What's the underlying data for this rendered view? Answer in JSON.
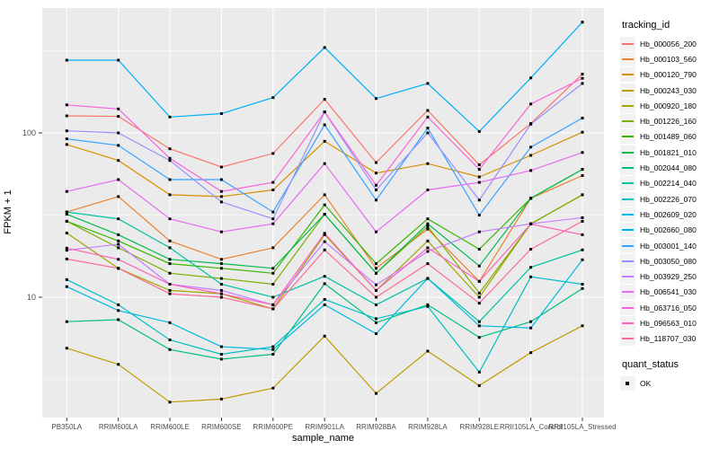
{
  "chart_data": {
    "type": "line",
    "title": "",
    "xlabel": "sample_name",
    "ylabel": "FPKM + 1",
    "y_scale": "log10",
    "y_ticks": [
      10,
      100
    ],
    "y_minor_ticks": [
      3.162,
      31.623,
      316.228
    ],
    "ylim": [
      1.85,
      575
    ],
    "grid": "on",
    "legend_position": "right",
    "legend_title": "tracking_id",
    "quant_legend_title": "quant_status",
    "quant_legend_value": "OK",
    "point_shape": "black-square",
    "panel_background": "#EBEBEB",
    "gridline_color": "#FFFFFF",
    "axis_text_color": "#4D4D4D",
    "categories": [
      "PB350LA",
      "RRIM600LA",
      "RRIM600LE",
      "RRIM600SE",
      "RRIM600PE",
      "RRIM901LA",
      "RRIM928BA",
      "RRIM928LA",
      "RRIM928LE",
      "RRII105LA_Control",
      "RRII105LA_Stressed"
    ],
    "series": [
      {
        "name": "Hb_000056_200",
        "color": "#F8766D",
        "values": [
          127,
          126,
          80,
          62,
          75,
          160,
          66,
          137,
          64,
          114,
          228
        ]
      },
      {
        "name": "Hb_000103_560",
        "color": "#EA8331",
        "values": [
          33,
          41,
          22,
          17,
          20,
          42,
          15,
          26,
          12.5,
          40,
          55
        ]
      },
      {
        "name": "Hb_000120_790",
        "color": "#D89000",
        "values": [
          85,
          68,
          42,
          41,
          45,
          89,
          57,
          65,
          54,
          73,
          101
        ]
      },
      {
        "name": "Hb_000243_030",
        "color": "#C09B00",
        "values": [
          4.9,
          3.9,
          2.3,
          2.4,
          2.8,
          5.8,
          2.6,
          4.7,
          2.9,
          4.6,
          6.7
        ]
      },
      {
        "name": "Hb_000920_180",
        "color": "#A3A500",
        "values": [
          24.6,
          15,
          11,
          10.5,
          8.5,
          24,
          11,
          22,
          10,
          28,
          42
        ]
      },
      {
        "name": "Hb_001226_160",
        "color": "#7CAE00",
        "values": [
          29,
          20,
          14,
          13,
          12,
          32,
          14,
          27,
          10.6,
          27.9,
          42
        ]
      },
      {
        "name": "Hb_001489_060",
        "color": "#39B600",
        "values": [
          29,
          22,
          16,
          15,
          14,
          36.5,
          16,
          30,
          19.6,
          40,
          60
        ]
      },
      {
        "name": "Hb_001821_010",
        "color": "#00BB4E",
        "values": [
          32,
          24,
          17,
          16,
          15,
          32,
          14,
          28,
          15.5,
          40,
          60
        ]
      },
      {
        "name": "Hb_002044_080",
        "color": "#00BF7D",
        "values": [
          7.1,
          7.3,
          4.8,
          4.2,
          4.5,
          12.1,
          7,
          9,
          5.7,
          7.1,
          11.3
        ]
      },
      {
        "name": "Hb_002214_040",
        "color": "#00C1A3",
        "values": [
          33,
          30,
          20,
          12,
          10,
          13.4,
          9,
          13,
          7.1,
          15.2,
          19.4
        ]
      },
      {
        "name": "Hb_002226_070",
        "color": "#00BFC4",
        "values": [
          12.8,
          9,
          5.5,
          4.5,
          5,
          9.7,
          7.4,
          8.8,
          3.5,
          13.3,
          12
        ]
      },
      {
        "name": "Hb_002609_020",
        "color": "#00BAE0",
        "values": [
          11.6,
          8.3,
          7,
          5,
          4.8,
          9,
          6,
          13,
          6.7,
          6.5,
          16.9
        ]
      },
      {
        "name": "Hb_002660_080",
        "color": "#00B0F6",
        "values": [
          277,
          277,
          125,
          131,
          164,
          331,
          162,
          200,
          102,
          216,
          472
        ]
      },
      {
        "name": "Hb_003001_140",
        "color": "#35A2FF",
        "values": [
          92,
          84,
          52,
          52,
          33,
          112,
          39,
          107,
          31.6,
          82,
          123
        ]
      },
      {
        "name": "Hb_003050_080",
        "color": "#9590FF",
        "values": [
          103,
          100,
          68,
          38,
          30,
          134,
          45,
          100,
          39,
          113,
          200
        ]
      },
      {
        "name": "Hb_003929_250",
        "color": "#C77CFF",
        "values": [
          19.3,
          21,
          12,
          11,
          9,
          21.8,
          11.9,
          19,
          25,
          28,
          30.5
        ]
      },
      {
        "name": "Hb_006541_030",
        "color": "#E76BF3",
        "values": [
          44,
          52,
          30,
          25,
          28,
          65,
          25,
          45,
          50,
          59,
          76
        ]
      },
      {
        "name": "Hb_063716_050",
        "color": "#FA62DB",
        "values": [
          148,
          140,
          70,
          44,
          50,
          134,
          48,
          125,
          60,
          150,
          215
        ]
      },
      {
        "name": "Hb_096563_010",
        "color": "#FF62BC",
        "values": [
          19.9,
          17,
          12,
          10.5,
          9,
          24.5,
          11,
          20,
          12.5,
          27.9,
          24
        ]
      },
      {
        "name": "Hb_118707_030",
        "color": "#FF6A98",
        "values": [
          17.1,
          15,
          10.5,
          10,
          8.5,
          19.4,
          10,
          16,
          9.2,
          19.6,
          29
        ]
      }
    ]
  }
}
